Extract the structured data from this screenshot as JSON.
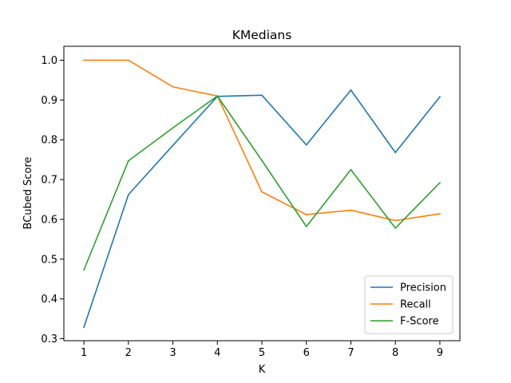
{
  "chart_data": {
    "type": "line",
    "title": "KMedians",
    "xlabel": "K",
    "ylabel": "BCubed Score",
    "x": [
      1,
      2,
      3,
      4,
      5,
      6,
      7,
      8,
      9
    ],
    "xlim": [
      0.55,
      9.45
    ],
    "ylim": [
      0.295,
      1.035
    ],
    "xticks": [
      1,
      2,
      3,
      4,
      5,
      6,
      7,
      8,
      9
    ],
    "yticks": [
      0.3,
      0.4,
      0.5,
      0.6,
      0.7,
      0.8,
      0.9,
      1.0
    ],
    "ytick_labels": [
      "0.3",
      "0.4",
      "0.5",
      "0.6",
      "0.7",
      "0.8",
      "0.9",
      "1.0"
    ],
    "grid": false,
    "legend_position": "lower-right",
    "series": [
      {
        "name": "Precision",
        "color": "#1f77b4",
        "values": [
          0.329,
          0.662,
          0.786,
          0.909,
          0.912,
          0.787,
          0.925,
          0.768,
          0.908
        ]
      },
      {
        "name": "Recall",
        "color": "#ff7f0e",
        "values": [
          1.0,
          1.0,
          0.933,
          0.91,
          0.669,
          0.612,
          0.623,
          0.597,
          0.614
        ]
      },
      {
        "name": "F-Score",
        "color": "#2ca02c",
        "values": [
          0.473,
          0.747,
          0.83,
          0.91,
          0.748,
          0.582,
          0.725,
          0.578,
          0.692
        ]
      }
    ]
  }
}
